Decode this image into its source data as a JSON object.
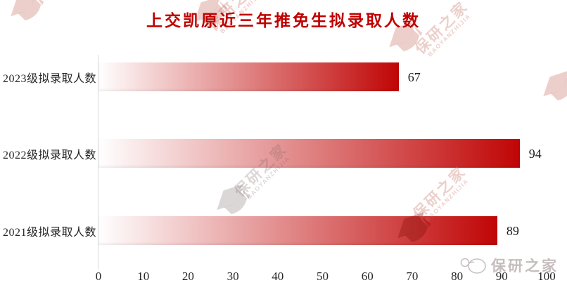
{
  "title": {
    "text": "上交凯原近三年推免生拟录取人数",
    "color": "#bf0000"
  },
  "chart_data": {
    "type": "bar",
    "orientation": "horizontal",
    "title": "上交凯原近三年推免生拟录取人数",
    "categories": [
      "2023级拟录取人数",
      "2022级拟录取人数",
      "2021级拟录取人数"
    ],
    "values": [
      67,
      94,
      89
    ],
    "xlim": [
      0,
      100
    ],
    "x_ticks": [
      0,
      10,
      20,
      30,
      40,
      50,
      60,
      70,
      80,
      90,
      100
    ],
    "grid": false,
    "legend": "none",
    "value_labels": true,
    "bar_gradient_start": "#ffffff",
    "bar_gradient_end": "#c00505"
  },
  "watermark": {
    "cn": "保研之家",
    "en": "BAOYANZHIJIA"
  },
  "brand_footer": {
    "text": "保研之家"
  }
}
